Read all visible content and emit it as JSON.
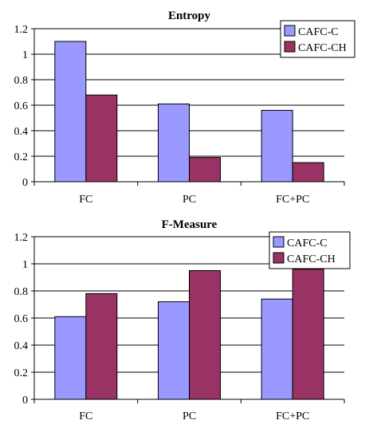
{
  "chart_data": [
    {
      "type": "bar",
      "title": "Entropy",
      "xlabel": "",
      "ylabel": "",
      "categories": [
        "FC",
        "PC",
        "FC+PC"
      ],
      "ylim": [
        0,
        1.2
      ],
      "yticks": [
        "0",
        "0.2",
        "0.4",
        "0.6",
        "0.8",
        "1",
        "1.2"
      ],
      "grid": true,
      "legend": "top-right",
      "series": [
        {
          "name": "CAFC-C",
          "color": "#9999ff",
          "values": [
            1.1,
            0.61,
            0.56
          ]
        },
        {
          "name": "CAFC-CH",
          "color": "#993366",
          "values": [
            0.68,
            0.19,
            0.15
          ]
        }
      ]
    },
    {
      "type": "bar",
      "title": "F-Measure",
      "xlabel": "",
      "ylabel": "",
      "categories": [
        "FC",
        "PC",
        "FC+PC"
      ],
      "ylim": [
        0,
        1.2
      ],
      "yticks": [
        "0",
        "0.2",
        "0.4",
        "0.6",
        "0.8",
        "1",
        "1.2"
      ],
      "grid": true,
      "legend": "top-right",
      "series": [
        {
          "name": "CAFC-C",
          "color": "#9999ff",
          "values": [
            0.61,
            0.72,
            0.74
          ]
        },
        {
          "name": "CAFC-CH",
          "color": "#993366",
          "values": [
            0.78,
            0.95,
            0.96
          ]
        }
      ]
    }
  ]
}
